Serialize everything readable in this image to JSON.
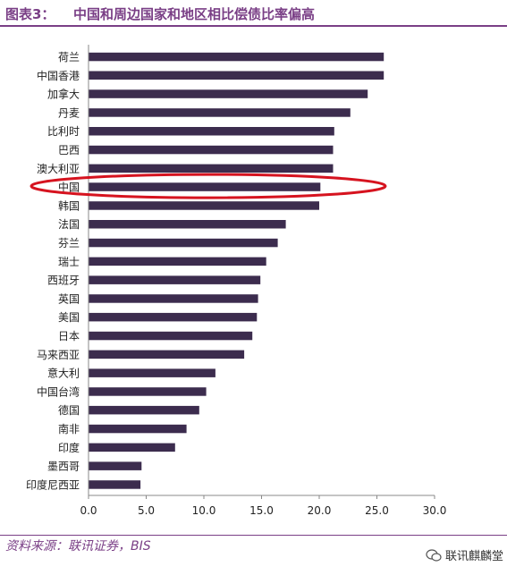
{
  "figure": {
    "label": "图表3：",
    "title": "中国和周边国家和地区相比偿债比率偏高",
    "source": "资料来源：联讯证券，BIS",
    "watermark": "联讯麒麟堂"
  },
  "colors": {
    "bar": "#3c2c4e",
    "accent": "#7a3f86",
    "highlight_ellipse": "#d6131f"
  },
  "chart_data": {
    "type": "bar",
    "orientation": "horizontal",
    "categories": [
      "荷兰",
      "中国香港",
      "加拿大",
      "丹麦",
      "比利时",
      "巴西",
      "澳大利亚",
      "中国",
      "韩国",
      "法国",
      "芬兰",
      "瑞士",
      "西班牙",
      "英国",
      "美国",
      "日本",
      "马来西亚",
      "意大利",
      "中国台湾",
      "德国",
      "南非",
      "印度",
      "墨西哥",
      "印度尼西亚"
    ],
    "values": [
      25.6,
      25.6,
      24.2,
      22.7,
      21.3,
      21.2,
      21.2,
      20.1,
      20.0,
      17.1,
      16.4,
      15.4,
      14.9,
      14.7,
      14.6,
      14.2,
      13.5,
      11.0,
      10.2,
      9.6,
      8.5,
      7.5,
      4.6,
      4.5
    ],
    "xlim": [
      0,
      30
    ],
    "xticks": [
      "0.0",
      "5.0",
      "10.0",
      "15.0",
      "20.0",
      "25.0",
      "30.0"
    ],
    "highlighted_category": "中国",
    "grid": false,
    "legend": "none"
  }
}
